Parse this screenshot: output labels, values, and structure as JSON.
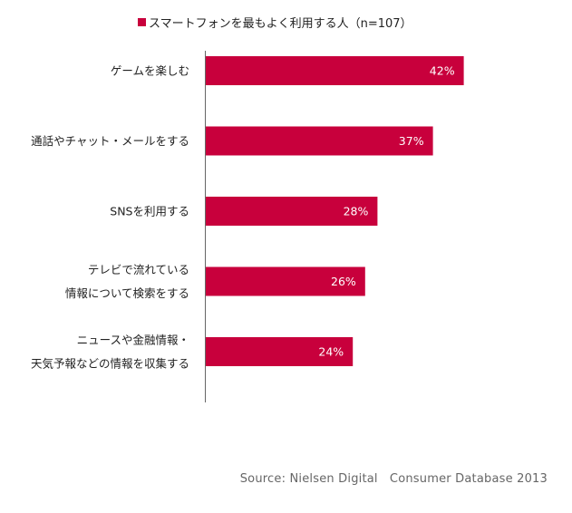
{
  "legend": {
    "label": "スマートフォンを最もよく利用する人（n=107）"
  },
  "source": "Source: Nielsen Digital　Consumer Database 2013",
  "colors": {
    "bar": "#c8003c",
    "bar_label": "#ffffff",
    "axis": "#666666",
    "category_text": "#222222"
  },
  "chart_data": {
    "type": "bar",
    "orientation": "horizontal",
    "categories": [
      [
        "ゲームを楽しむ"
      ],
      [
        "通話やチャット・メールをする"
      ],
      [
        "SNSを利用する"
      ],
      [
        "テレビで流れている",
        "情報について検索をする"
      ],
      [
        "ニュースや金融情報・",
        "天気予報などの情報を収集する"
      ]
    ],
    "values": [
      42,
      37,
      28,
      26,
      24
    ],
    "value_labels": [
      "42%",
      "37%",
      "28%",
      "26%",
      "24%"
    ],
    "series": [
      {
        "name": "スマートフォンを最もよく利用する人（n=107）",
        "values": [
          42,
          37,
          28,
          26,
          24
        ]
      }
    ],
    "xlim": [
      0,
      100
    ],
    "grid": false,
    "legend_position": "top"
  }
}
